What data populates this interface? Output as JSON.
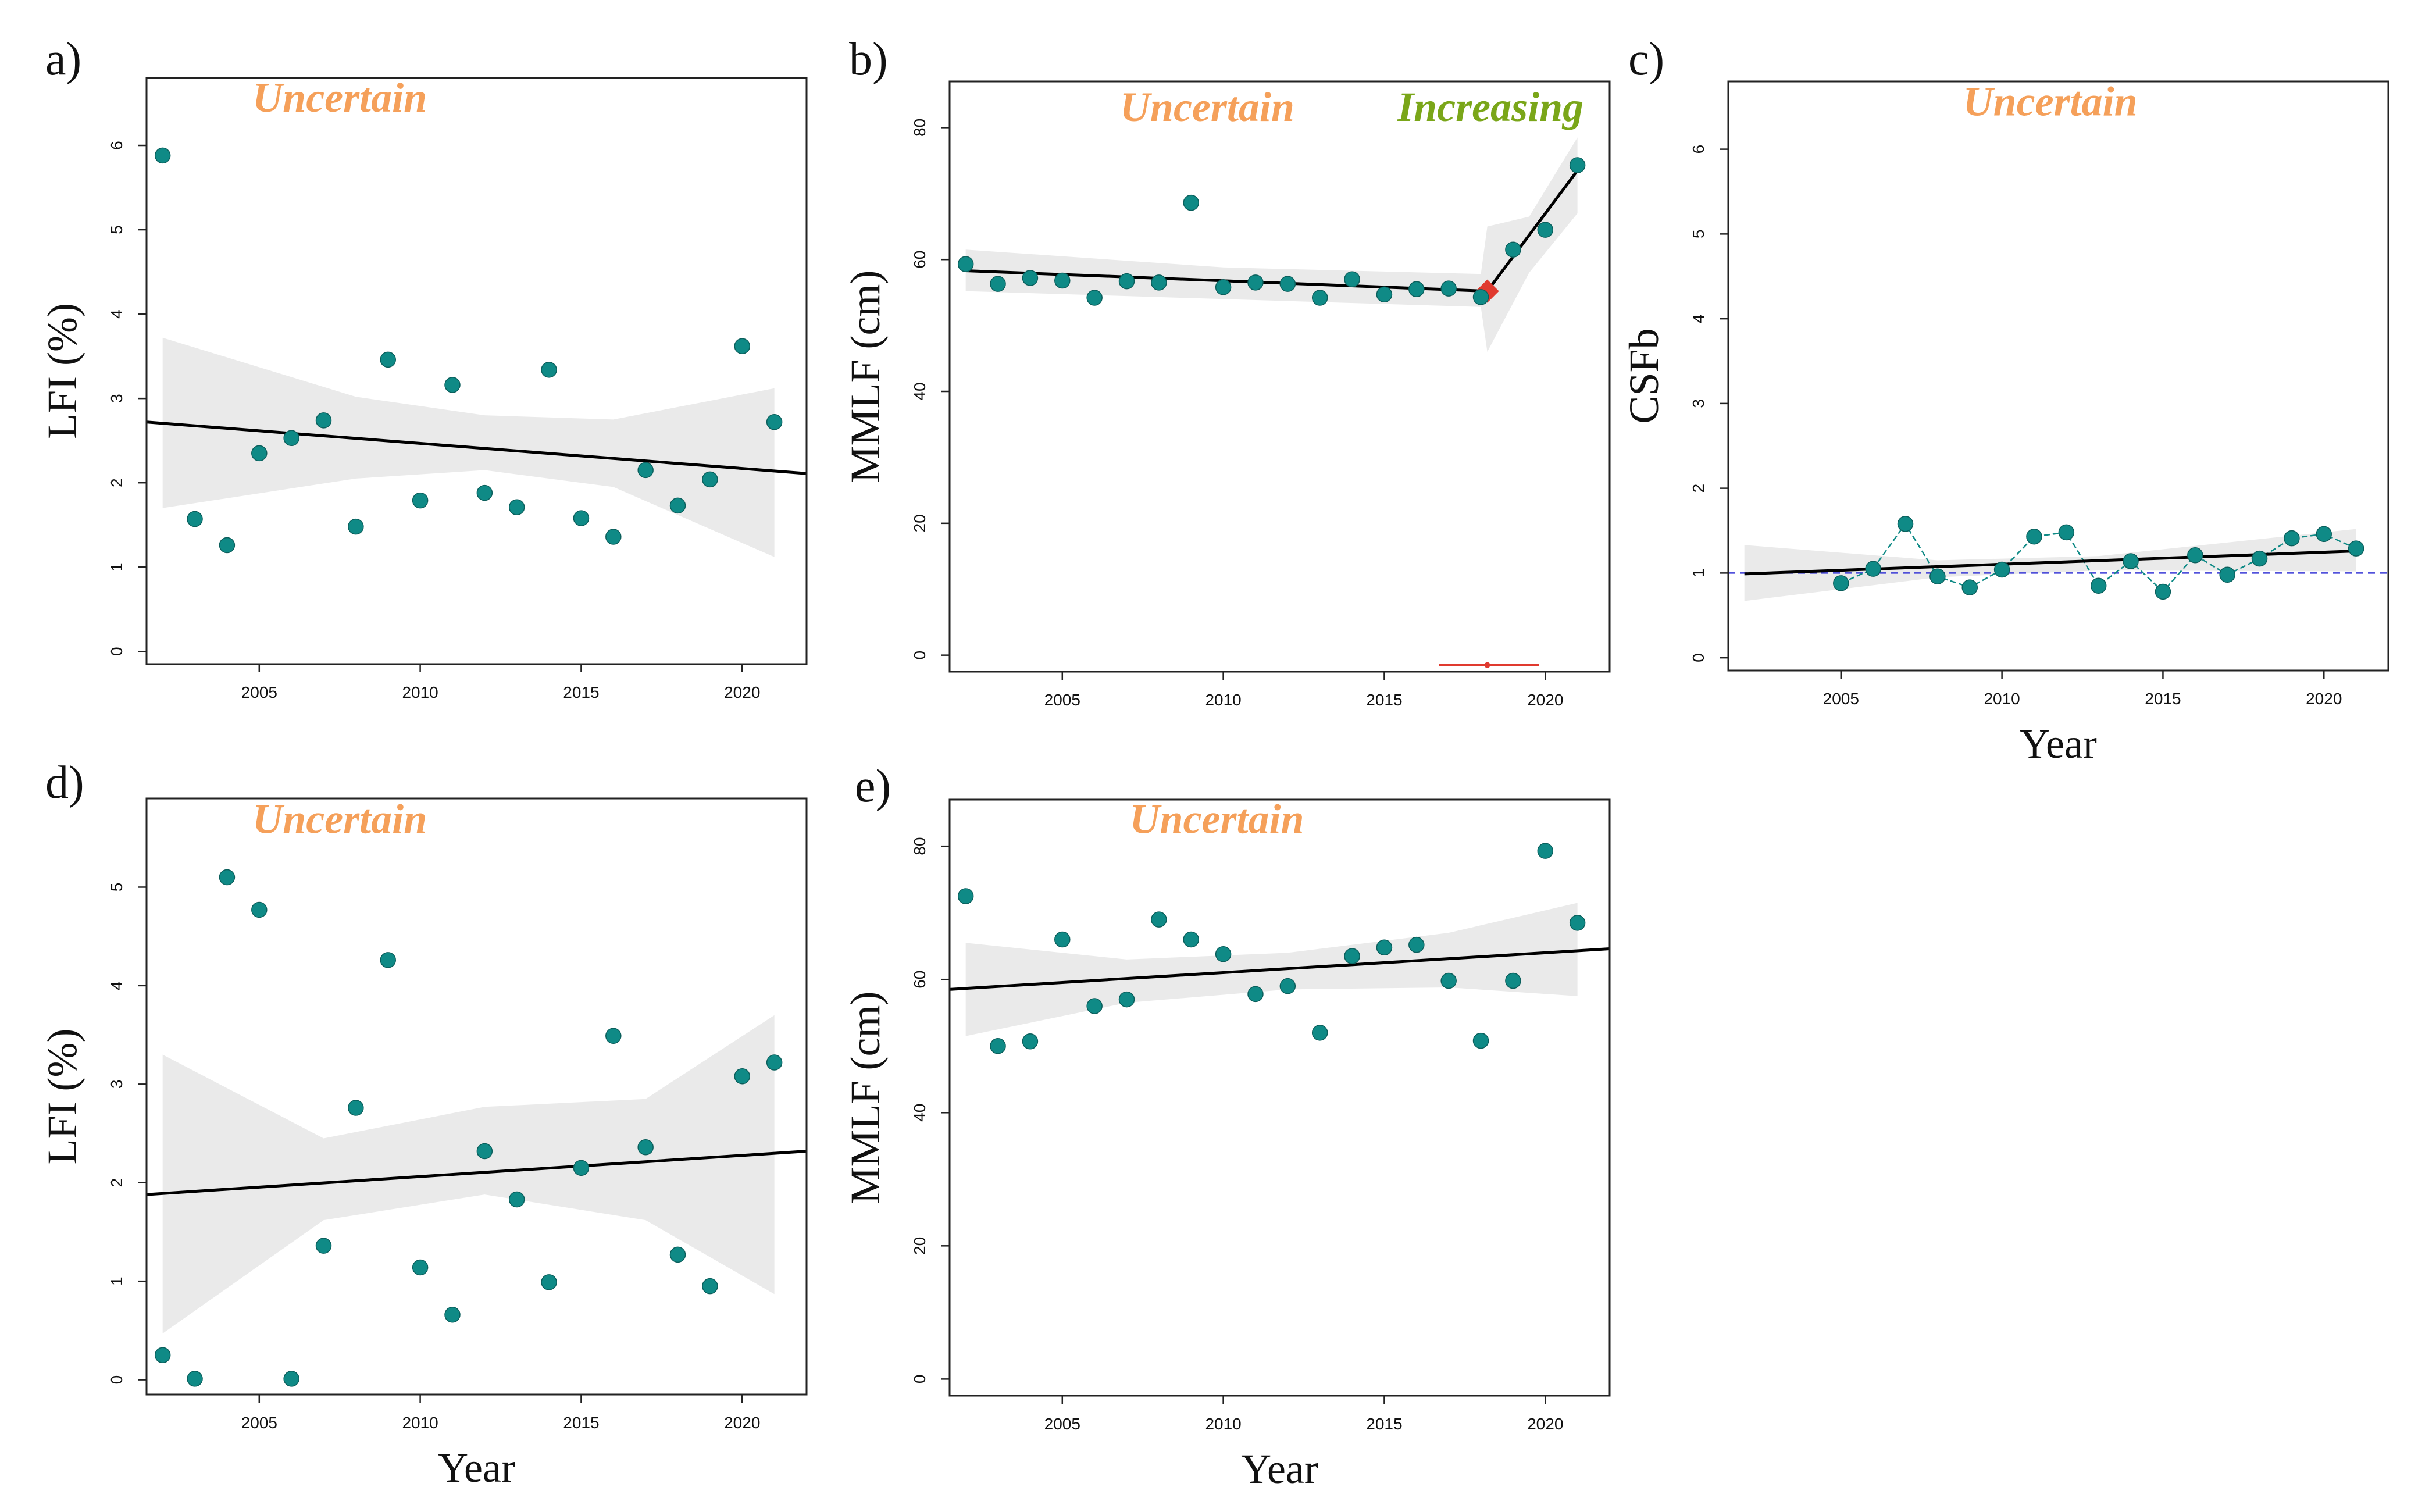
{
  "colors": {
    "point": "#0f8a86",
    "uncertain": "#f5a05a",
    "increasing": "#7aa619",
    "breakpoint": "#e03a2f",
    "reference": "#3a3ad6",
    "band": "#d9d9d9"
  },
  "chart_data": [
    {
      "id": "a",
      "panel_label": "a)",
      "type": "scatter",
      "ylabel": "LFI (%)",
      "xlabel": "",
      "xlim": [
        2001.5,
        2022
      ],
      "ylim": [
        -0.15,
        6.8
      ],
      "x_ticks": [
        2005,
        2010,
        2015,
        2020
      ],
      "y_ticks": [
        0,
        1,
        2,
        3,
        4,
        5,
        6
      ],
      "annotations": [
        {
          "text": "Uncertain",
          "color_key": "uncertain",
          "x": 2007.5,
          "y": 6.4
        }
      ],
      "x": [
        2002,
        2003,
        2004,
        2005,
        2006,
        2007,
        2008,
        2009,
        2010,
        2011,
        2012,
        2013,
        2014,
        2015,
        2016,
        2017,
        2018,
        2019,
        2020,
        2021
      ],
      "y": [
        5.88,
        1.57,
        1.26,
        2.35,
        2.53,
        2.74,
        1.48,
        3.46,
        1.79,
        3.16,
        1.88,
        1.71,
        3.34,
        1.58,
        1.36,
        2.15,
        1.73,
        2.04,
        3.62,
        2.72
      ],
      "fit": {
        "x": [
          2001.5,
          2022
        ],
        "y": [
          2.72,
          2.11
        ]
      },
      "band": {
        "x": [
          2002,
          2008,
          2012,
          2016,
          2021
        ],
        "lower": [
          1.7,
          2.05,
          2.15,
          1.95,
          1.12
        ],
        "upper": [
          3.72,
          3.02,
          2.8,
          2.75,
          3.12
        ]
      }
    },
    {
      "id": "b",
      "panel_label": "b)",
      "type": "scatter",
      "ylabel": "MMLF (cm)",
      "xlabel": "",
      "xlim": [
        2001.5,
        2022
      ],
      "ylim": [
        -2.5,
        87
      ],
      "x_ticks": [
        2005,
        2010,
        2015,
        2020
      ],
      "y_ticks": [
        0,
        20,
        40,
        60,
        80
      ],
      "annotations": [
        {
          "text": "Uncertain",
          "color_key": "uncertain",
          "x": 2009.5,
          "y": 81
        },
        {
          "text": "Increasing",
          "color_key": "increasing",
          "x": 2018.3,
          "y": 81
        }
      ],
      "x": [
        2002,
        2003,
        2004,
        2005,
        2006,
        2007,
        2008,
        2009,
        2010,
        2011,
        2012,
        2013,
        2014,
        2015,
        2016,
        2017,
        2018,
        2019,
        2020,
        2021
      ],
      "y": [
        59.3,
        56.3,
        57.2,
        56.8,
        54.2,
        56.7,
        56.5,
        68.6,
        55.8,
        56.5,
        56.3,
        54.2,
        57.0,
        54.7,
        55.5,
        55.6,
        54.3,
        61.5,
        64.5,
        74.3
      ],
      "fit": {
        "x": [
          2002,
          2018.2,
          2021
        ],
        "y": [
          58.3,
          55.2,
          73.5
        ]
      },
      "band": {
        "x": [
          2002,
          2010,
          2018,
          2018.2,
          2019.5,
          2021
        ],
        "lower": [
          55.2,
          54.0,
          52.8,
          46,
          58,
          67
        ],
        "upper": [
          61.5,
          58.8,
          57.8,
          65,
          66.5,
          78.5
        ]
      },
      "breakpoint": {
        "x": 2018.2,
        "y": 55.2,
        "ci": [
          2016.7,
          2019.8
        ],
        "ci_y": -1.5
      }
    },
    {
      "id": "c",
      "panel_label": "c)",
      "type": "line",
      "ylabel": "CSFb",
      "xlabel": "Year",
      "xlim": [
        2001.5,
        2022
      ],
      "ylim": [
        -0.15,
        6.8
      ],
      "x_ticks": [
        2005,
        2010,
        2015,
        2020
      ],
      "y_ticks": [
        0,
        1,
        2,
        3,
        4,
        5,
        6
      ],
      "annotations": [
        {
          "text": "Uncertain",
          "color_key": "uncertain",
          "x": 2011.5,
          "y": 6.4
        }
      ],
      "reference_line": 1.0,
      "x": [
        2005,
        2006,
        2007,
        2008,
        2009,
        2010,
        2011,
        2012,
        2013,
        2014,
        2015,
        2016,
        2017,
        2018,
        2019,
        2020,
        2021
      ],
      "y": [
        0.88,
        1.05,
        1.58,
        0.96,
        0.83,
        1.04,
        1.43,
        1.48,
        0.85,
        1.14,
        0.78,
        1.21,
        0.98,
        1.17,
        1.41,
        1.46,
        1.29
      ],
      "fit": {
        "x": [
          2002,
          2021
        ],
        "y": [
          0.99,
          1.26
        ]
      },
      "band": {
        "x": [
          2002,
          2008,
          2013,
          2021
        ],
        "lower": [
          0.67,
          0.95,
          1.03,
          1.02
        ],
        "upper": [
          1.33,
          1.15,
          1.2,
          1.52
        ]
      }
    },
    {
      "id": "d",
      "panel_label": "d)",
      "type": "scatter",
      "ylabel": "LFI (%)",
      "xlabel": "Year",
      "xlim": [
        2001.5,
        2022
      ],
      "ylim": [
        -0.15,
        5.9
      ],
      "x_ticks": [
        2005,
        2010,
        2015,
        2020
      ],
      "y_ticks": [
        0,
        1,
        2,
        3,
        4,
        5
      ],
      "annotations": [
        {
          "text": "Uncertain",
          "color_key": "uncertain",
          "x": 2007.5,
          "y": 5.55
        }
      ],
      "x": [
        2002,
        2003,
        2004,
        2005,
        2006,
        2007,
        2008,
        2009,
        2010,
        2011,
        2012,
        2013,
        2014,
        2015,
        2016,
        2017,
        2018,
        2019,
        2020,
        2021
      ],
      "y": [
        0.25,
        0.01,
        5.1,
        4.77,
        0.01,
        1.36,
        2.76,
        4.26,
        1.14,
        0.66,
        2.32,
        1.83,
        0.99,
        2.15,
        3.49,
        2.36,
        1.27,
        0.95,
        3.08,
        3.22
      ],
      "fit": {
        "x": [
          2001.5,
          2022
        ],
        "y": [
          1.88,
          2.32
        ]
      },
      "band": {
        "x": [
          2002,
          2007,
          2012,
          2017,
          2021
        ],
        "lower": [
          0.47,
          1.62,
          1.88,
          1.62,
          0.87
        ],
        "upper": [
          3.3,
          2.45,
          2.77,
          2.85,
          3.7
        ]
      }
    },
    {
      "id": "e",
      "panel_label": "e)",
      "type": "scatter",
      "ylabel": "MMLF (cm)",
      "xlabel": "Year",
      "xlim": [
        2001.5,
        2022
      ],
      "ylim": [
        -2.5,
        87
      ],
      "x_ticks": [
        2005,
        2010,
        2015,
        2020
      ],
      "y_ticks": [
        0,
        20,
        40,
        60,
        80
      ],
      "annotations": [
        {
          "text": "Uncertain",
          "color_key": "uncertain",
          "x": 2009.8,
          "y": 82
        }
      ],
      "x": [
        2002,
        2003,
        2004,
        2005,
        2006,
        2007,
        2008,
        2009,
        2010,
        2011,
        2012,
        2013,
        2014,
        2015,
        2016,
        2017,
        2018,
        2019,
        2020,
        2021
      ],
      "y": [
        72.5,
        50.0,
        50.7,
        66.0,
        56.0,
        57.0,
        69.0,
        66.0,
        63.8,
        57.8,
        59.0,
        52.0,
        63.5,
        64.8,
        65.2,
        59.8,
        50.8,
        59.8,
        79.3,
        68.5
      ],
      "fit": {
        "x": [
          2001.5,
          2022
        ],
        "y": [
          58.5,
          64.6
        ]
      },
      "band": {
        "x": [
          2002,
          2007,
          2012,
          2017,
          2021
        ],
        "lower": [
          51.5,
          56.5,
          58.5,
          58.8,
          57.5
        ],
        "upper": [
          65.5,
          63.0,
          64.0,
          67.0,
          71.5
        ]
      }
    }
  ]
}
